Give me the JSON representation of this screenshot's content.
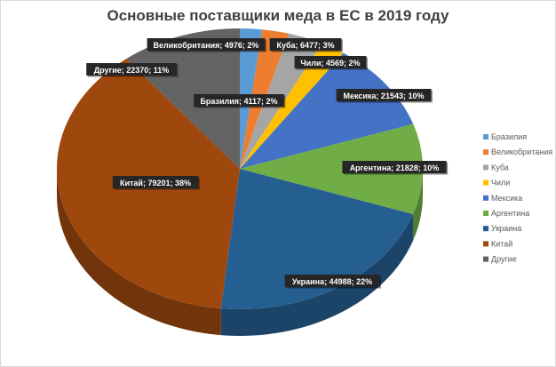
{
  "chart_data": {
    "type": "pie",
    "title": "Основные поставщики меда в ЕС в 2019 году",
    "categories": [
      "Бразилия",
      "Великобритания",
      "Куба",
      "Чили",
      "Мексика",
      "Аргентина",
      "Украина",
      "Китай",
      "Другие"
    ],
    "values": [
      4117,
      4976,
      6477,
      4569,
      21543,
      21828,
      44988,
      79201,
      22370
    ],
    "percents": [
      2,
      2,
      3,
      2,
      10,
      10,
      22,
      38,
      11
    ],
    "data_labels": [
      "Бразилия; 4117; 2%",
      "Великобритания; 4976; 2%",
      "Куба; 6477; 3%",
      "Чили; 4569; 2%",
      "Мексика; 21543; 10%",
      "Аргентина; 21828; 10%",
      "Украина; 44988; 22%",
      "Китай; 79201; 38%",
      "Другие; 22370; 11%"
    ],
    "colors": [
      "#5b9bd5",
      "#ed7d31",
      "#a5a5a5",
      "#ffc000",
      "#4472c4",
      "#70ad47",
      "#255e91",
      "#9e480e",
      "#636363"
    ],
    "legend_position": "right",
    "style": "3d-pie"
  }
}
